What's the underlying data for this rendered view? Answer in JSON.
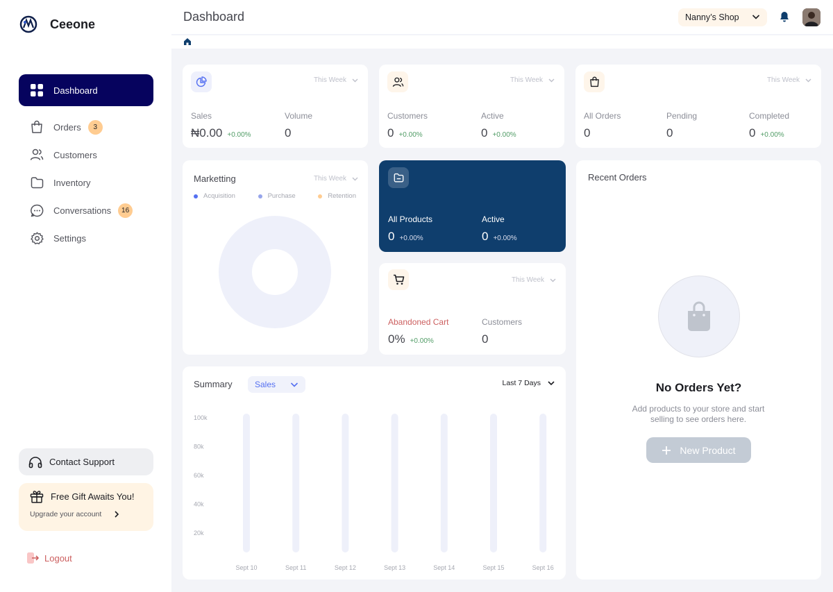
{
  "sidebar": {
    "brand": "Ceeone",
    "nav": [
      {
        "label": "Dashboard",
        "icon": "dashboard-icon",
        "active": true
      },
      {
        "label": "Orders",
        "icon": "bag-icon",
        "badge": "3"
      },
      {
        "label": "Customers",
        "icon": "users-icon"
      },
      {
        "label": "Inventory",
        "icon": "folder-icon"
      },
      {
        "label": "Conversations",
        "icon": "chat-icon",
        "badge": "16"
      },
      {
        "label": "Settings",
        "icon": "gear-icon"
      }
    ],
    "support": "Contact Support",
    "gift": {
      "title": "Free Gift Awaits You!",
      "subtitle": "Upgrade your account"
    },
    "logout": "Logout"
  },
  "header": {
    "title": "Dashboard",
    "shop": "Nanny’s Shop"
  },
  "cards": {
    "sales": {
      "period": "This Week",
      "stats": [
        {
          "label": "Sales",
          "value": "₦0.00",
          "change": "+0.00%"
        },
        {
          "label": "Volume",
          "value": "0"
        }
      ]
    },
    "customers": {
      "period": "This Week",
      "stats": [
        {
          "label": "Customers",
          "value": "0",
          "change": "+0.00%"
        },
        {
          "label": "Active",
          "value": "0",
          "change": "+0.00%"
        }
      ]
    },
    "orders": {
      "period": "This Week",
      "stats": [
        {
          "label": "All Orders",
          "value": "0"
        },
        {
          "label": "Pending",
          "value": "0"
        },
        {
          "label": "Completed",
          "value": "0",
          "change": "+0.00%"
        }
      ]
    },
    "products": {
      "stats": [
        {
          "label": "All Products",
          "value": "0",
          "change": "+0.00%"
        },
        {
          "label": "Active",
          "value": "0",
          "change": "+0.00%"
        }
      ]
    },
    "cart": {
      "period": "This Week",
      "stats": [
        {
          "label": "Abandoned Cart",
          "value": "0%",
          "change": "+0.00%"
        },
        {
          "label": "Customers",
          "value": "0"
        }
      ]
    }
  },
  "marketing": {
    "title": "Marketting",
    "period": "This Week",
    "legend": [
      {
        "label": "Acquisition",
        "color": "#5570f1"
      },
      {
        "label": "Purchase",
        "color": "#97a5eb"
      },
      {
        "label": "Retention",
        "color": "#ffcc91"
      }
    ]
  },
  "summary": {
    "title": "Summary",
    "metric": "Sales",
    "range": "Last 7 Days",
    "chart_data": {
      "type": "bar",
      "categories": [
        "Sept 10",
        "Sept 11",
        "Sept 12",
        "Sept 13",
        "Sept 14",
        "Sept 15",
        "Sept 16"
      ],
      "values": [
        0,
        0,
        0,
        0,
        0,
        0,
        0
      ],
      "y_ticks": [
        "100k",
        "80k",
        "60k",
        "40k",
        "20k"
      ],
      "ylim": [
        0,
        100000
      ]
    }
  },
  "recent_orders": {
    "title": "Recent Orders",
    "empty_title": "No Orders Yet?",
    "empty_desc": "Add products to your store and start selling to see orders here.",
    "button": "New Product"
  },
  "colors": {
    "primary": "#06035e",
    "dark_card": "#0f3e6d",
    "badge": "#ffcc91",
    "positive": "#519c66",
    "danger": "#cc5f5f"
  }
}
